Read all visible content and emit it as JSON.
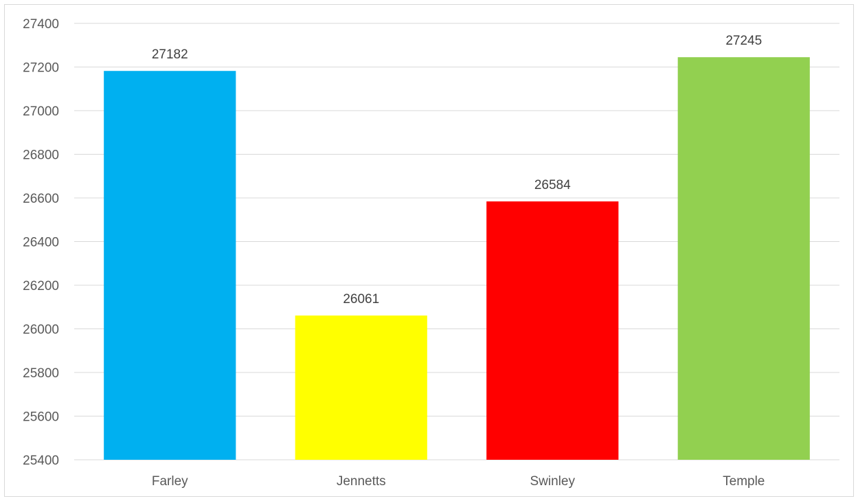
{
  "chart_data": {
    "type": "bar",
    "title": "",
    "xlabel": "",
    "ylabel": "",
    "categories": [
      "Farley",
      "Jennetts",
      "Swinley",
      "Temple"
    ],
    "values": [
      27182,
      26061,
      26584,
      27245
    ],
    "data_labels": [
      "27182",
      "26061",
      "26584",
      "27245"
    ],
    "colors": [
      "#00b0f0",
      "#ffff00",
      "#ff0000",
      "#92d050"
    ],
    "ylim": [
      25400,
      27400
    ],
    "yticks": [
      25400,
      25600,
      25800,
      26000,
      26200,
      26400,
      26600,
      26800,
      27000,
      27200,
      27400
    ],
    "ytick_labels": [
      "25400",
      "25600",
      "25800",
      "26000",
      "26200",
      "26400",
      "26600",
      "26800",
      "27000",
      "27200",
      "27400"
    ],
    "grid": true,
    "gridline_color": "#d9d9d9",
    "legend": "none"
  }
}
